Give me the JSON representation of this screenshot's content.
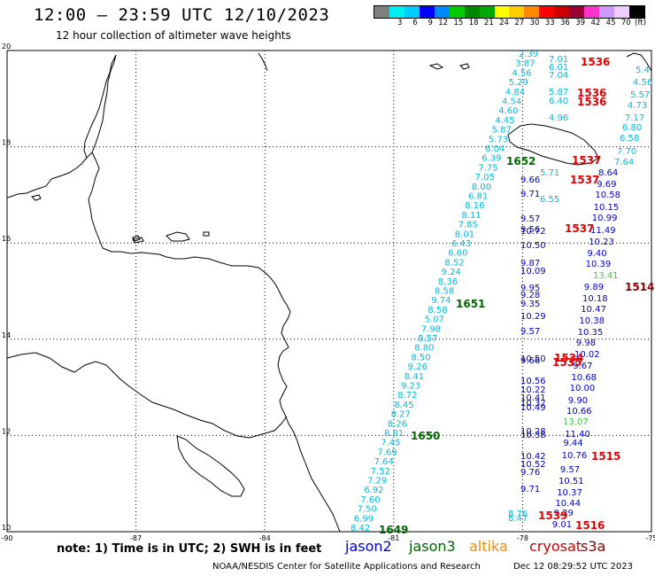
{
  "header": {
    "title": "12:00 – 23:59 UTC 12/10/2023",
    "subtitle": "12 hour collection of altimeter wave heights"
  },
  "colorbar": {
    "colors": [
      "#808080",
      "#00eeee",
      "#00ccff",
      "#0000ff",
      "#0088ff",
      "#00cc00",
      "#008800",
      "#00aa00",
      "#ffff00",
      "#ffcc00",
      "#ff8800",
      "#ff0000",
      "#cc0000",
      "#990033",
      "#ff33cc",
      "#cc99ff",
      "#eeccff",
      "#000000"
    ],
    "labels": [
      "3",
      "6",
      "9",
      "12",
      "15",
      "18",
      "21",
      "24",
      "27",
      "30",
      "33",
      "36",
      "39",
      "42",
      "45",
      "70",
      "(ft)"
    ]
  },
  "map": {
    "lat_labels": [
      "20",
      "18",
      "16",
      "14",
      "12",
      "10"
    ],
    "lon_labels": [
      "-90",
      "-87",
      "-84",
      "-81",
      "-78",
      "-75"
    ],
    "lat_values": [
      20,
      18,
      16,
      14,
      12,
      10
    ],
    "lon_values": [
      -90,
      -87,
      -84,
      -81,
      -78,
      -75
    ]
  },
  "tracks": {
    "cyan": [
      "2.39",
      "3.87",
      "4.56",
      "5.29",
      "4.84",
      "4.54",
      "4.60",
      "4.45",
      "5.87",
      "5.73",
      "6.04",
      "6.39",
      "7.75",
      "7.05",
      "8.00",
      "6.81",
      "8.16",
      "8.11",
      "7.85",
      "8.01",
      "6.43",
      "6.60",
      "8.52",
      "9.24",
      "8.36",
      "8.58",
      "9.74",
      "8.58",
      "5.07",
      "7.98",
      "8.57",
      "8.80",
      "8.50",
      "9.26",
      "8.41",
      "9.23",
      "8.72",
      "8.45",
      "8.27",
      "8.26",
      "8.81",
      "7.45",
      "7.69",
      "7.64",
      "7.52",
      "7.29",
      "6.92",
      "7.60",
      "7.50",
      "6.99",
      "8.42"
    ],
    "cyan_east": [
      "7.01",
      "6.01",
      "7.04",
      "5.87",
      "6.40",
      "4.96"
    ],
    "cyan_east2": [
      "5.71",
      "6.55",
      "8.76",
      "8.47"
    ],
    "blue": [
      "9.71",
      "9.66",
      "9.57",
      "9.56",
      "10.72",
      "10.50",
      "9.87",
      "10.09",
      "9.95",
      "9.28",
      "9.35",
      "10.29",
      "9.57",
      "10.50",
      "9.66",
      "10.56",
      "10.22",
      "10.41",
      "10.32",
      "10.49",
      "10.28",
      "10.38",
      "10.42",
      "10.52",
      "9.76",
      "9.71"
    ],
    "blue_east": [
      "8.64",
      "9.69",
      "10.58",
      "10.15",
      "10.99",
      "11.49",
      "10.23",
      "9.40",
      "10.39",
      "9.89",
      "10.18",
      "10.47",
      "10.38",
      "10.35",
      "9.98",
      "10.02",
      "9.67",
      "10.68",
      "10.00",
      "9.90",
      "10.66",
      "11.40",
      "9.44",
      "10.76",
      "9.57",
      "10.51",
      "10.37",
      "10.44",
      "9.29",
      "9.01"
    ],
    "teal_east": [
      "5.4",
      "4.56",
      "5.57",
      "4.73",
      "7.17",
      "6.80",
      "6.58",
      "7.70",
      "7.64"
    ],
    "green_vals": [
      "13.41",
      "13.07"
    ]
  },
  "pass_ids": {
    "green": [
      "1652",
      "1651",
      "1650",
      "1649"
    ],
    "red": [
      "1536",
      "1536",
      "1536",
      "1537",
      "1537",
      "1537",
      "1534",
      "1535",
      "1515",
      "1516",
      "1539"
    ],
    "darkred": [
      "1514"
    ]
  },
  "footer": {
    "note": "note:  1) Time is in UTC;  2) SWH is in feet",
    "legend": [
      {
        "name": "jason2",
        "color": "#0000cc"
      },
      {
        "name": "jason3",
        "color": "#006600"
      },
      {
        "name": "altika",
        "color": "#ff8800"
      },
      {
        "name": "cryosat",
        "color": "#cc0000"
      },
      {
        "name": "s3a",
        "color": "#880000"
      }
    ],
    "credits": "NOAA/NESDIS Center for Satellite Applications and Research",
    "date": "Dec 12 08:29:52 UTC 2023"
  }
}
